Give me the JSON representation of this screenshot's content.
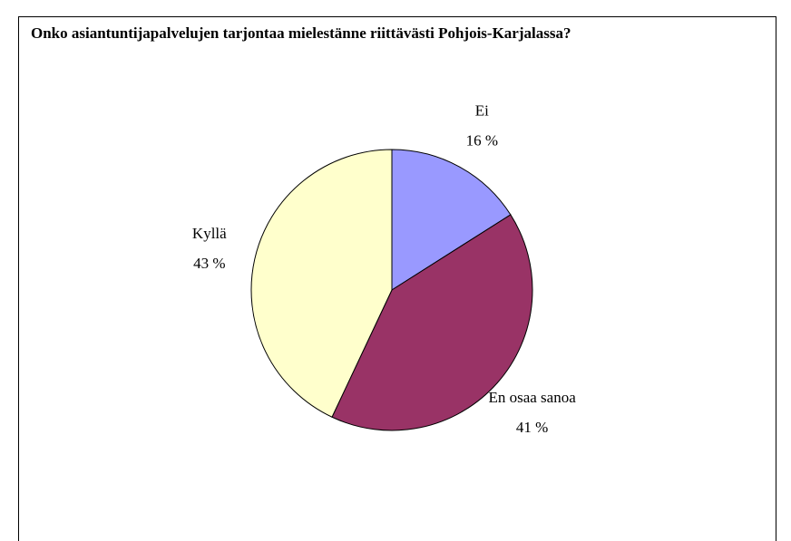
{
  "chart_data": {
    "type": "pie",
    "title": "Onko asiantuntijapalvelujen tarjontaa mielestänne riittävästi Pohjois-Karjalassa?",
    "categories": [
      "Ei",
      "En osaa sanoa",
      "Kyllä"
    ],
    "values": [
      16,
      41,
      43
    ],
    "value_labels": [
      "16 %",
      "41 %",
      "43 %"
    ],
    "colors": [
      "#9999ff",
      "#993366",
      "#ffffcc"
    ]
  }
}
